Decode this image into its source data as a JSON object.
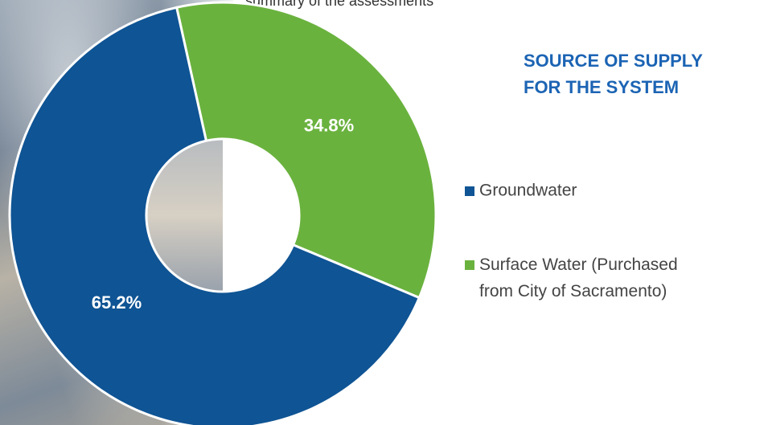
{
  "caption": "summary of the assessments",
  "chart_data": {
    "type": "donut",
    "title": "SOURCE OF SUPPLY FOR THE SYSTEM",
    "categories": [
      "Groundwater",
      "Surface Water (Purchased from City of Sacramento)"
    ],
    "values": [
      65.2,
      34.8
    ],
    "value_labels": [
      "65.2%",
      "34.8%"
    ],
    "colors": [
      "#0f5494",
      "#6ab23e"
    ]
  }
}
